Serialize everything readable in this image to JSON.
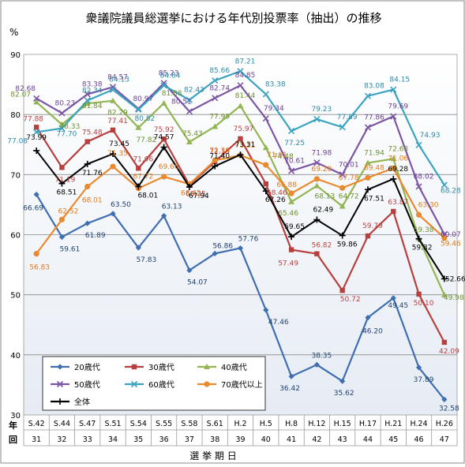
{
  "chart_data": {
    "type": "line",
    "title": "衆議院議員総選挙における年代別投票率（抽出）の推移",
    "ylabel": "%",
    "xlabel": "選 挙 期 日",
    "row_labels": [
      "年",
      "回"
    ],
    "ylim": [
      30,
      90
    ],
    "yticks": [
      30,
      40,
      50,
      60,
      70,
      80,
      90
    ],
    "grid": true,
    "legend_placement": "bottom-left",
    "x_era": [
      "S.42",
      "S.44",
      "S.47",
      "S.51",
      "S.54",
      "S.55",
      "S.58",
      "S.61",
      "H.2",
      "H.5",
      "H.8",
      "H.12",
      "H.15",
      "H.17",
      "H.21",
      "H.24",
      "H.26"
    ],
    "x_round": [
      "31",
      "32",
      "33",
      "34",
      "35",
      "36",
      "37",
      "38",
      "39",
      "40",
      "41",
      "42",
      "43",
      "44",
      "45",
      "46",
      "47"
    ],
    "series": [
      {
        "name": "20歳代",
        "color": "#3f6fb0",
        "marker": "diamond",
        "values": [
          66.69,
          59.61,
          61.89,
          63.5,
          57.83,
          63.13,
          54.07,
          56.86,
          57.76,
          47.46,
          36.42,
          38.35,
          35.62,
          46.2,
          49.45,
          37.89,
          32.58
        ],
        "label_color": "#1e3f6e"
      },
      {
        "name": "30歳代",
        "color": "#b7403e",
        "marker": "square",
        "values": [
          77.88,
          71.19,
          75.48,
          77.41,
          71.06,
          75.92,
          68.25,
          72.15,
          75.97,
          68.46,
          57.49,
          56.82,
          50.72,
          59.79,
          63.87,
          50.1,
          42.09
        ],
        "label_color": "#b7403e"
      },
      {
        "name": "40歳代",
        "color": "#94b553",
        "marker": "triangle",
        "values": [
          82.07,
          78.33,
          81.84,
          82.29,
          77.82,
          81.88,
          75.43,
          77.99,
          81.44,
          74.48,
          65.46,
          68.13,
          64.72,
          71.94,
          72.63,
          59.38,
          49.98
        ],
        "label_color": "#6e8f2e"
      },
      {
        "name": "50歳代",
        "color": "#7c56a4",
        "marker": "x",
        "values": [
          82.68,
          80.23,
          83.38,
          84.57,
          80.97,
          85.23,
          80.51,
          82.74,
          84.85,
          79.34,
          70.61,
          71.98,
          70.01,
          77.86,
          79.69,
          68.02,
          60.07
        ],
        "label_color": "#6a3f92"
      },
      {
        "name": "60歳代",
        "color": "#3aa4c0",
        "marker": "x",
        "values": [
          77.08,
          77.7,
          82.34,
          84.13,
          80.82,
          84.84,
          82.43,
          85.66,
          87.21,
          83.38,
          77.25,
          79.23,
          77.89,
          83.08,
          84.15,
          74.93,
          68.28
        ],
        "label_color": "#2d8aa8"
      },
      {
        "name": "70歳代以上",
        "color": "#e98a2f",
        "marker": "circle",
        "values": [
          56.83,
          62.52,
          68.01,
          71.35,
          67.72,
          69.66,
          68.41,
          72.36,
          73.21,
          71.61,
          66.88,
          69.28,
          67.78,
          69.48,
          71.06,
          63.3,
          59.46
        ],
        "label_color": "#e07a1c"
      },
      {
        "name": "全体",
        "color": "#000000",
        "marker": "plus",
        "values": [
          73.99,
          68.51,
          71.76,
          73.45,
          68.01,
          74.57,
          67.94,
          71.4,
          73.31,
          67.26,
          59.65,
          62.49,
          59.86,
          67.51,
          69.28,
          59.32,
          52.66
        ],
        "label_color": "#000000"
      }
    ]
  }
}
